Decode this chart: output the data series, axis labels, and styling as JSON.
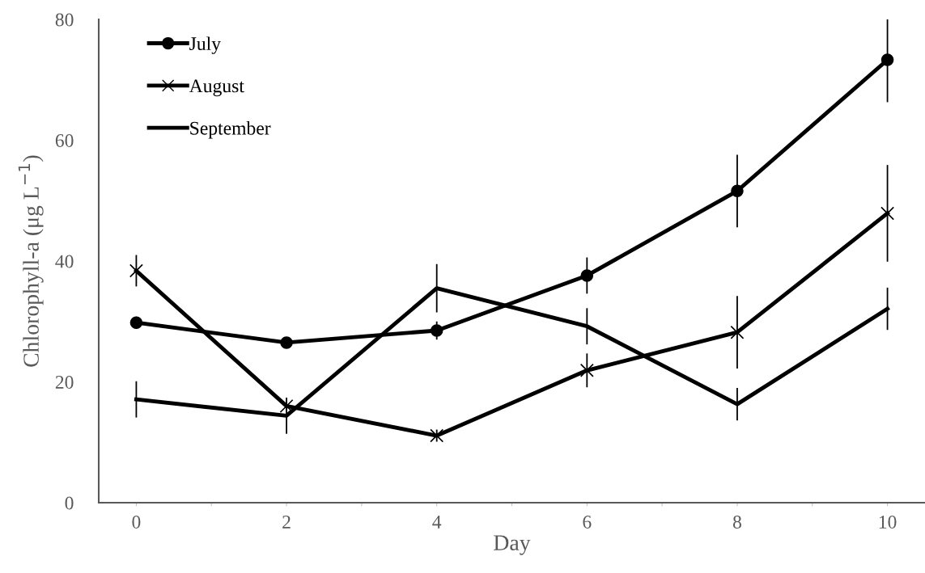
{
  "chart_data": {
    "type": "line",
    "xlabel": "Day",
    "ylabel": "Chlorophyll-a (μg L$^{−1}$)",
    "x": [
      0,
      2,
      4,
      6,
      8,
      10
    ],
    "series": [
      {
        "name": "July",
        "color": "#000000",
        "marker": "circle",
        "values": [
          29.8,
          26.5,
          28.5,
          37.6,
          51.6,
          73.3
        ],
        "errors": [
          1,
          0.5,
          1.5,
          3,
          6,
          7
        ]
      },
      {
        "name": "August",
        "color": "#000000",
        "marker": "cross",
        "values": [
          38.4,
          16.0,
          11.1,
          21.9,
          28.2,
          47.9
        ],
        "errors": [
          2.6,
          1,
          1,
          2.8,
          6,
          8
        ]
      },
      {
        "name": "September",
        "color": "#000000",
        "marker": "none",
        "values": [
          17.1,
          14.4,
          35.5,
          29.2,
          16.3,
          32.1
        ],
        "errors": [
          3,
          3,
          4,
          3,
          2.7,
          3.5
        ]
      }
    ],
    "xlim": [
      -0.5,
      10.5
    ],
    "xticks": [
      0,
      {
        "value": 1,
        "label": null
      },
      2,
      {
        "value": 3,
        "label": null
      },
      4,
      {
        "value": 5,
        "label": null
      },
      6,
      {
        "value": 7,
        "label": null
      },
      8,
      {
        "value": 9,
        "label": null
      },
      10
    ],
    "ylim": [
      0,
      80
    ],
    "yticks": [
      0,
      20,
      40,
      60,
      80
    ],
    "grid": false,
    "legend": "top left",
    "line_style": "solid"
  }
}
